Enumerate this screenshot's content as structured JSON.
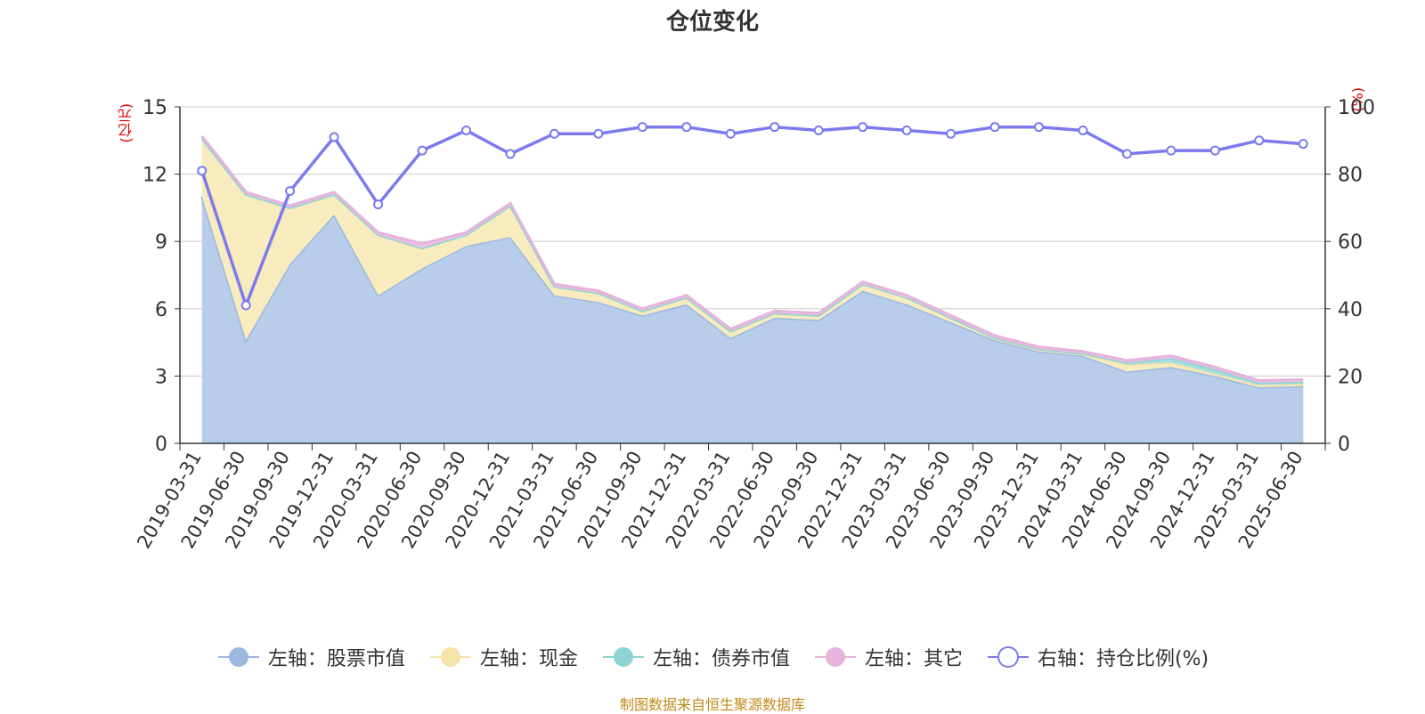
{
  "title": "仓位变化",
  "left_unit": "(亿元)",
  "right_unit": "(%)",
  "source": "制图数据来自恒生聚源数据库",
  "chart_data": {
    "type": "area",
    "categories": [
      "2019-03-31",
      "2019-06-30",
      "2019-09-30",
      "2019-12-31",
      "2020-03-31",
      "2020-06-30",
      "2020-09-30",
      "2020-12-31",
      "2021-03-31",
      "2021-06-30",
      "2021-09-30",
      "2021-12-31",
      "2022-03-31",
      "2022-06-30",
      "2022-09-30",
      "2022-12-31",
      "2023-03-31",
      "2023-06-30",
      "2023-09-30",
      "2023-12-31",
      "2024-03-31",
      "2024-06-30",
      "2024-09-30",
      "2024-12-31",
      "2025-03-31",
      "2025-06-30"
    ],
    "left_axis": {
      "min": 0,
      "max": 15,
      "ticks": [
        0,
        3,
        6,
        9,
        12,
        15
      ]
    },
    "right_axis": {
      "min": 0,
      "max": 100,
      "ticks": [
        0,
        20,
        40,
        60,
        80,
        100
      ]
    },
    "grid": true,
    "legend_position": "bottom",
    "series": [
      {
        "name": "左轴：股票市值",
        "axis": "left",
        "color": "#9bb8e0",
        "fill": "#b8cdea",
        "values": [
          11.0,
          4.6,
          8.0,
          10.2,
          6.6,
          7.8,
          8.8,
          9.2,
          6.6,
          6.3,
          5.7,
          6.2,
          4.7,
          5.6,
          5.5,
          6.8,
          6.2,
          5.4,
          4.6,
          4.1,
          3.9,
          3.2,
          3.4,
          3.0,
          2.5,
          2.55
        ]
      },
      {
        "name": "左轴：现金",
        "axis": "left",
        "color": "#f5e4a8",
        "fill": "#f8ebbe",
        "values": [
          2.6,
          6.5,
          2.5,
          0.9,
          2.7,
          0.9,
          0.5,
          1.4,
          0.4,
          0.4,
          0.2,
          0.3,
          0.3,
          0.2,
          0.2,
          0.3,
          0.3,
          0.2,
          0.1,
          0.1,
          0.1,
          0.3,
          0.2,
          0.1,
          0.1,
          0.1
        ]
      },
      {
        "name": "左轴：债券市值",
        "axis": "left",
        "color": "#8fd3d1",
        "fill": "#a8dedc",
        "values": [
          0,
          0,
          0,
          0,
          0,
          0,
          0,
          0,
          0,
          0,
          0,
          0,
          0,
          0,
          0,
          0,
          0,
          0,
          0,
          0,
          0,
          0.1,
          0.2,
          0.2,
          0.1,
          0.1
        ]
      },
      {
        "name": "左轴：其它",
        "axis": "left",
        "color": "#e5b3dc",
        "fill": "#eac2e2",
        "values": [
          0.1,
          0.1,
          0.1,
          0.1,
          0.1,
          0.2,
          0.1,
          0.1,
          0.1,
          0.1,
          0.1,
          0.1,
          0.1,
          0.1,
          0.1,
          0.1,
          0.1,
          0.1,
          0.1,
          0.1,
          0.1,
          0.1,
          0.1,
          0.1,
          0.1,
          0.1
        ]
      },
      {
        "name": "右轴：持仓比例(%)",
        "axis": "right",
        "color": "#7b7bee",
        "values": [
          81,
          41,
          75,
          91,
          71,
          87,
          93,
          86,
          92,
          92,
          94,
          94,
          92,
          94,
          93,
          94,
          93,
          92,
          94,
          94,
          93,
          86,
          87,
          87,
          90,
          89
        ]
      }
    ]
  }
}
